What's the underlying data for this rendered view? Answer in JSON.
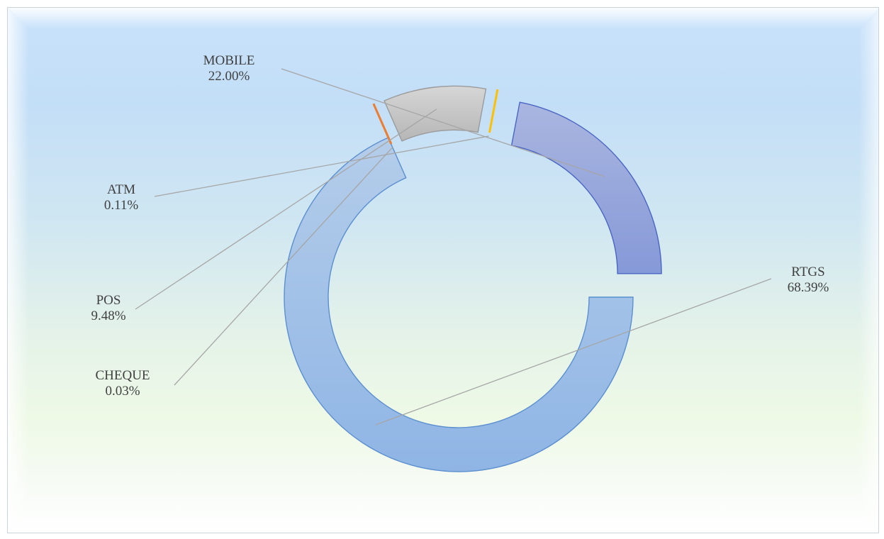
{
  "chart_data": {
    "type": "pie",
    "variant": "exploded-doughnut",
    "title": "",
    "series": [
      {
        "name": "",
        "categories": [
          "RTGS",
          "CHEQUE",
          "POS",
          "ATM",
          "MOBILE"
        ],
        "values": [
          68.39,
          0.03,
          9.48,
          0.11,
          22.0
        ],
        "labels": [
          "68.39%",
          "0.03%",
          "9.48%",
          "0.11%",
          "22.00%"
        ]
      }
    ],
    "colors": {
      "RTGS": "#9dbde6",
      "CHEQUE": "#ed7d31",
      "POS": "#c6c6c6",
      "ATM": "#ffc000",
      "MOBILE": "#98a8dc"
    },
    "legend": "none",
    "data_labels": "outside-with-leader-lines"
  }
}
